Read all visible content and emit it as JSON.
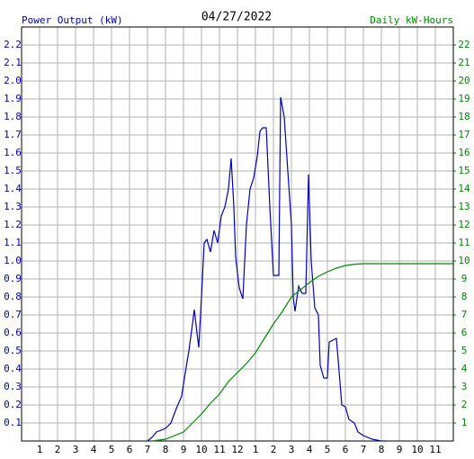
{
  "chart_data": {
    "type": "line",
    "title": "04/27/2022",
    "y_label": "Power Output (kW)",
    "y2_label": "Daily kW-Hours",
    "xlim": [
      0,
      24
    ],
    "xticks": [
      1,
      2,
      3,
      4,
      5,
      6,
      7,
      8,
      9,
      10,
      11,
      12,
      {
        "value": 13,
        "label": "1"
      },
      {
        "value": 14,
        "label": "2"
      },
      {
        "value": 15,
        "label": "3"
      },
      {
        "value": 16,
        "label": "4"
      },
      {
        "value": 17,
        "label": "5"
      },
      {
        "value": 18,
        "label": "6"
      },
      {
        "value": 19,
        "label": "7"
      },
      {
        "value": 20,
        "label": "8"
      },
      {
        "value": 21,
        "label": "9"
      },
      {
        "value": 22,
        "label": "10"
      },
      {
        "value": 23,
        "label": "11"
      }
    ],
    "ylim": [
      0,
      2.3
    ],
    "yticks": [
      0.1,
      0.2,
      0.3,
      0.4,
      0.5,
      0.6,
      0.7,
      0.8,
      0.9,
      {
        "value": 1,
        "label": "1.0"
      },
      1.1,
      1.2,
      1.3,
      1.4,
      1.5,
      1.6,
      1.7,
      1.8,
      1.9,
      {
        "value": 2,
        "label": "2.0"
      },
      2.1,
      2.2
    ],
    "y2lim": [
      0,
      23
    ],
    "y2ticks": [
      1,
      2,
      3,
      4,
      5,
      6,
      7,
      8,
      9,
      10,
      11,
      12,
      13,
      14,
      15,
      16,
      17,
      18,
      19,
      20,
      21,
      22
    ],
    "grid": true,
    "series": [
      {
        "name": "Power Output (kW)",
        "color": "#0000c0",
        "x": [
          7.0,
          7.25,
          7.5,
          8.0,
          8.3,
          8.6,
          8.9,
          9.1,
          9.3,
          9.5,
          9.6,
          9.75,
          9.85,
          10.0,
          10.15,
          10.3,
          10.5,
          10.7,
          10.9,
          11.1,
          11.3,
          11.5,
          11.65,
          11.8,
          11.9,
          12.1,
          12.3,
          12.5,
          12.7,
          12.9,
          13.1,
          13.25,
          13.4,
          13.6,
          13.8,
          14.0,
          14.3,
          14.4,
          14.6,
          14.8,
          15.0,
          15.1,
          15.2,
          15.4,
          15.6,
          15.8,
          15.95,
          16.1,
          16.3,
          16.5,
          16.6,
          16.8,
          17.0,
          17.1,
          17.3,
          17.5,
          17.6,
          17.8,
          18.0,
          18.2,
          18.5,
          18.7,
          19.0,
          19.5,
          20.0,
          20.3
        ],
        "values": [
          0,
          0.02,
          0.05,
          0.07,
          0.1,
          0.18,
          0.25,
          0.38,
          0.5,
          0.65,
          0.73,
          0.6,
          0.52,
          0.8,
          1.1,
          1.12,
          1.05,
          1.17,
          1.1,
          1.25,
          1.3,
          1.4,
          1.57,
          1.3,
          1.02,
          0.85,
          0.79,
          1.2,
          1.4,
          1.46,
          1.58,
          1.72,
          1.74,
          1.74,
          1.3,
          0.92,
          0.92,
          1.91,
          1.8,
          1.5,
          1.2,
          0.8,
          0.72,
          0.86,
          0.82,
          0.82,
          1.48,
          1.0,
          0.74,
          0.7,
          0.42,
          0.35,
          0.35,
          0.55,
          0.56,
          0.57,
          0.45,
          0.2,
          0.19,
          0.12,
          0.1,
          0.05,
          0.03,
          0.01,
          0,
          0
        ]
      },
      {
        "name": "Daily kW-Hours",
        "color": "#008800",
        "axis": "y2",
        "x": [
          7.25,
          8.0,
          8.5,
          9.0,
          9.5,
          10.0,
          10.5,
          11.0,
          11.5,
          12.0,
          12.5,
          13.0,
          13.5,
          14.0,
          14.5,
          15.0,
          15.5,
          16.0,
          16.5,
          17.0,
          17.5,
          18.0,
          18.5,
          19.0,
          24.0
        ],
        "values": [
          0,
          0.1,
          0.3,
          0.5,
          1.0,
          1.5,
          2.1,
          2.6,
          3.3,
          3.8,
          4.3,
          4.9,
          5.7,
          6.5,
          7.2,
          8.0,
          8.4,
          8.8,
          9.15,
          9.4,
          9.6,
          9.75,
          9.82,
          9.85,
          9.85
        ]
      }
    ]
  }
}
